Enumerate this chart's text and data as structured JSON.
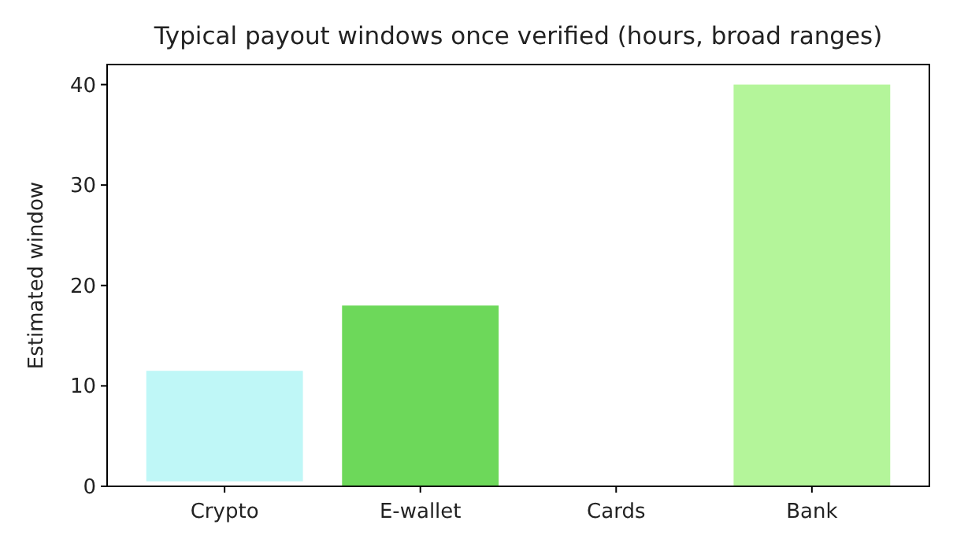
{
  "chart_data": {
    "type": "bar",
    "title": "Typical payout windows once verified (hours, broad ranges)",
    "ylabel": "Estimated window",
    "categories": [
      "Crypto",
      "E-wallet",
      "Cards",
      "Bank"
    ],
    "values": [
      11,
      18,
      null,
      40
    ],
    "base": [
      0.5,
      0,
      null,
      0
    ],
    "colors": [
      "#bff7f7",
      "#6dd85a",
      null,
      "#b4f59a"
    ],
    "ylim": [
      0,
      42
    ],
    "yticks": [
      0,
      10,
      20,
      30,
      40
    ],
    "grid": false
  }
}
